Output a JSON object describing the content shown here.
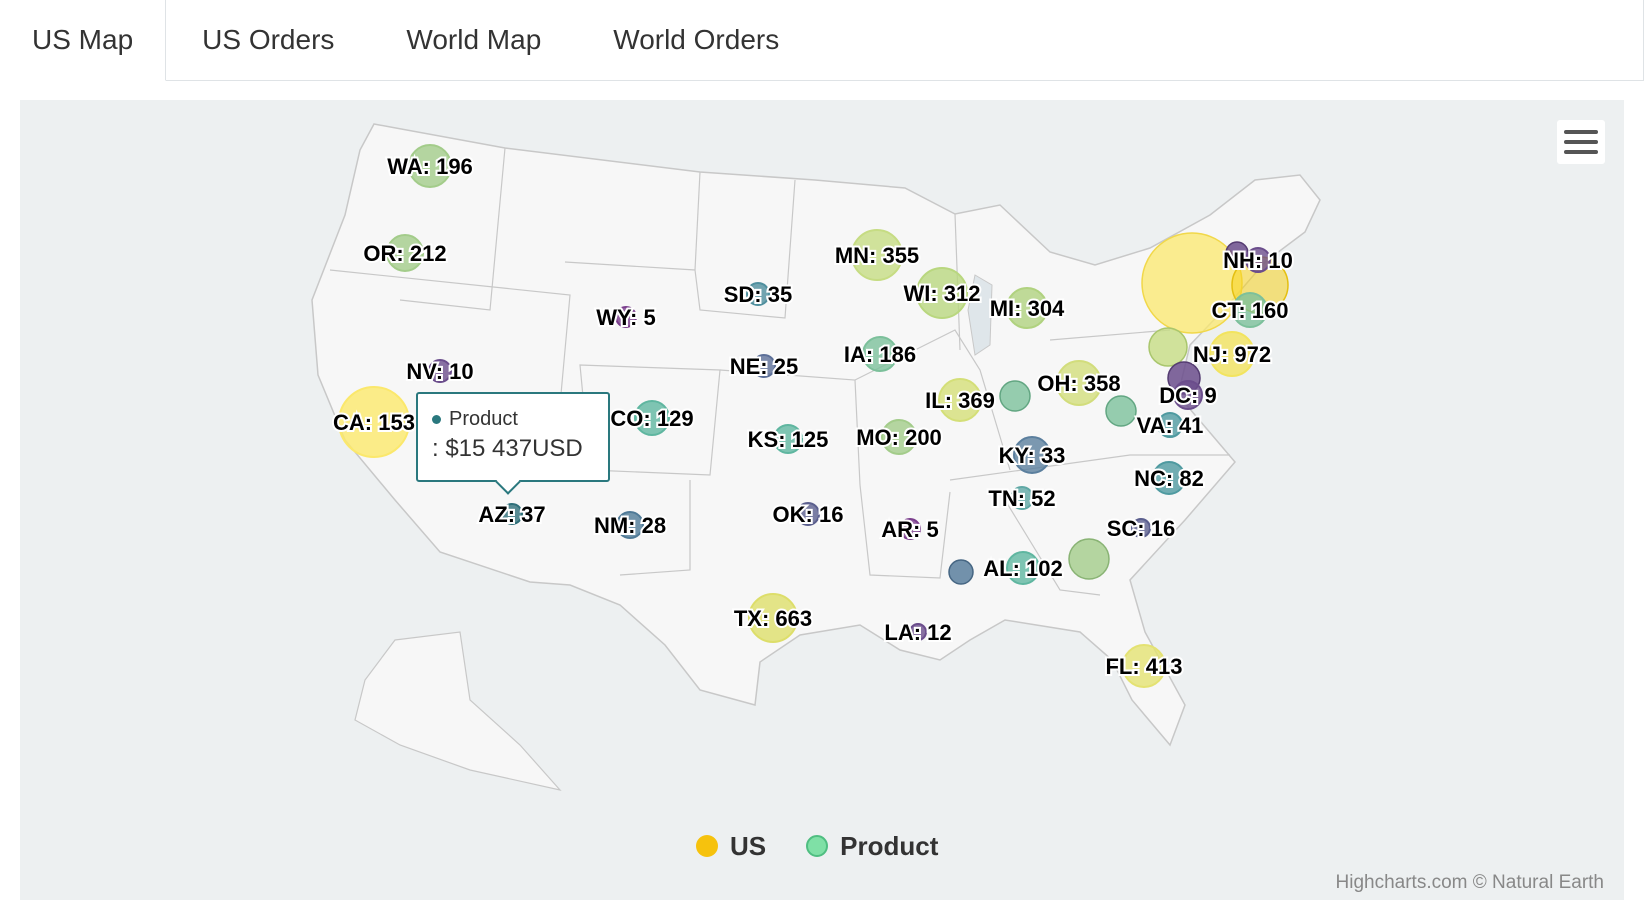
{
  "tabs": [
    {
      "label": "US Map",
      "active": true
    },
    {
      "label": "US Orders",
      "active": false
    },
    {
      "label": "World Map",
      "active": false
    },
    {
      "label": "World Orders",
      "active": false
    }
  ],
  "chart_data": {
    "type": "bubble-map",
    "legend": [
      {
        "label": "US",
        "color": "#f6c20d"
      },
      {
        "label": "Product",
        "color": "#7fe0a6"
      }
    ],
    "credits": "Highcharts.com © Natural Earth",
    "tooltip": {
      "series": "Product",
      "value": ": $15 437USD"
    },
    "points": [
      {
        "label": "WA: 196",
        "color": "#a3cc8a"
      },
      {
        "label": "OR: 212",
        "color": "#a3cc8a"
      },
      {
        "label": "CA: 153",
        "color": "#fbe86c"
      },
      {
        "label": "NV: 10",
        "color": "#6b4d8c"
      },
      {
        "label": "WY: 5",
        "color": "#7a3d8c"
      },
      {
        "label": "AZ: 37",
        "color": "#2f6f79"
      },
      {
        "label": "CO: 129",
        "color": "#5fb6a0"
      },
      {
        "label": "NM: 28",
        "color": "#4f7a97"
      },
      {
        "label": "SD: 35",
        "color": "#4f8f9e"
      },
      {
        "label": "NE: 25",
        "color": "#5c6f98"
      },
      {
        "label": "KS: 125",
        "color": "#5fb6a0"
      },
      {
        "label": "OK: 16",
        "color": "#5b5f8e"
      },
      {
        "label": "TX: 663",
        "color": "#ddde6a"
      },
      {
        "label": "MN: 355",
        "color": "#c6dc83"
      },
      {
        "label": "IA: 186",
        "color": "#7cc09b"
      },
      {
        "label": "MO: 200",
        "color": "#a3cc8a"
      },
      {
        "label": "AR: 5",
        "color": "#7a3d8c"
      },
      {
        "label": "LA: 12",
        "color": "#6b4d8c"
      },
      {
        "label": "WI: 312",
        "color": "#b9d77f"
      },
      {
        "label": "IL: 369",
        "color": "#d4df78"
      },
      {
        "label": "MI: 304",
        "color": "#b0d27f"
      },
      {
        "label": "OH: 358",
        "color": "#d2dd7c"
      },
      {
        "label": "KY: 33",
        "color": "#5b7f9e"
      },
      {
        "label": "TN: 52",
        "color": "#5fa8a5"
      },
      {
        "label": "AL: 102",
        "color": "#5fb6a0"
      },
      {
        "label": "FL: 413",
        "color": "#e4e272"
      },
      {
        "label": "SC: 16",
        "color": "#5b5f8e"
      },
      {
        "label": "NC: 82",
        "color": "#4f9aa0"
      },
      {
        "label": "VA: 41",
        "color": "#4f9aa0"
      },
      {
        "label": "DC: 9",
        "color": "#6b4d8c"
      },
      {
        "label": "NJ: 972",
        "color": "#f2e45f"
      },
      {
        "label": "CT: 160",
        "color": "#7cc09b"
      },
      {
        "label": "NH: 10",
        "color": "#6b4d8c"
      }
    ]
  }
}
